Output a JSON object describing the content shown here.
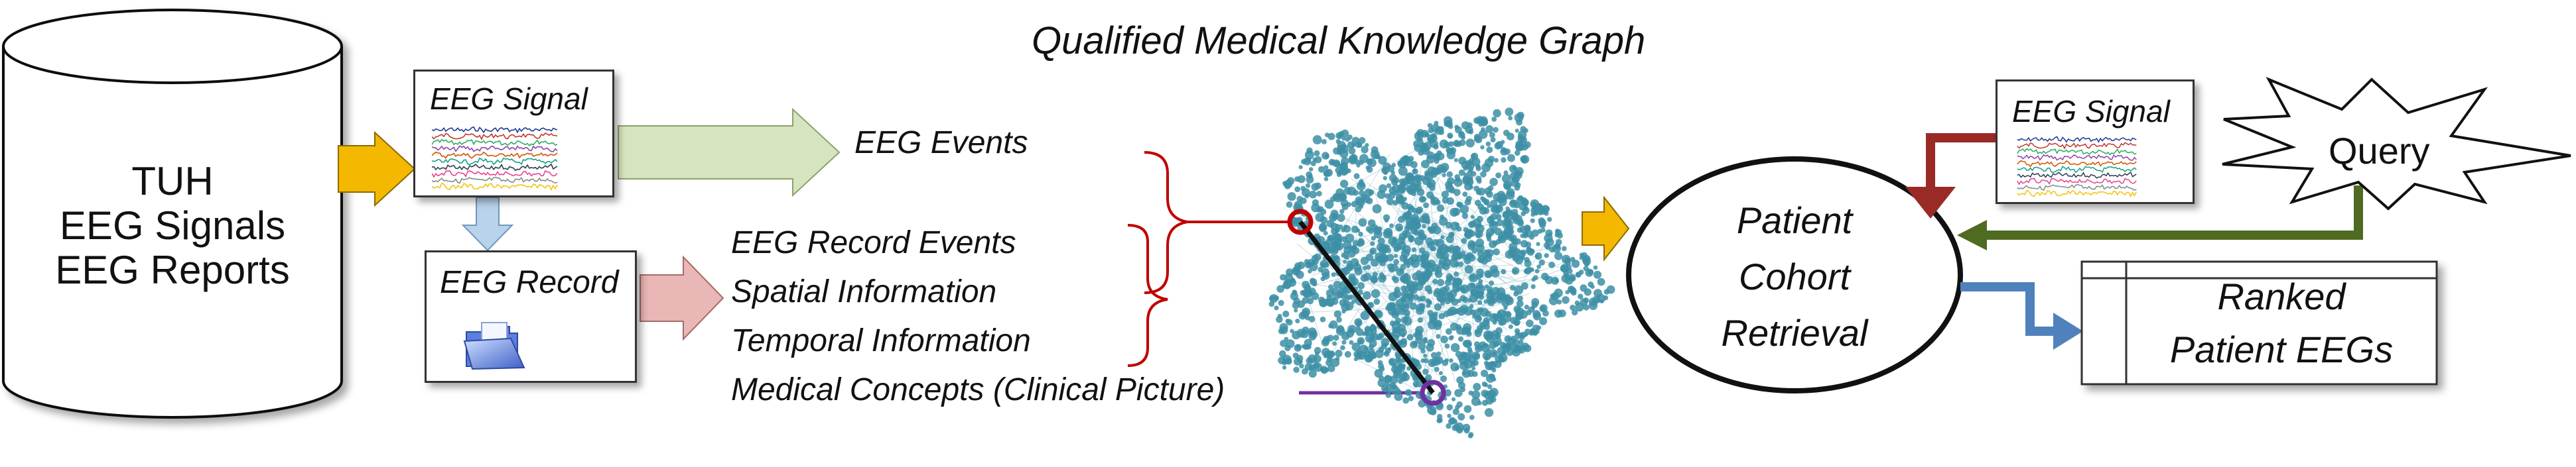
{
  "title": "Qualified Medical Knowledge Graph",
  "database": {
    "lines": [
      "TUH",
      "EEG Signals",
      "EEG Reports"
    ]
  },
  "eeg_signal_box": {
    "label": "EEG  Signal"
  },
  "eeg_record_box": {
    "label": "EEG Record"
  },
  "eeg_events": "EEG  Events",
  "record_items": [
    "EEG  Record Events",
    "Spatial Information",
    "Temporal Information",
    "Medical Concepts (Clinical Picture)"
  ],
  "retrieval": {
    "lines": [
      "Patient",
      "Cohort",
      "Retrieval"
    ]
  },
  "query_signal_box": {
    "label": "EEG  Signal"
  },
  "query": "Query",
  "ranked": {
    "lines": [
      "Ranked",
      "Patient EEGs"
    ]
  },
  "colors": {
    "yellow_arrow": "#f5b800",
    "green_arrow": "#d6e4bf",
    "blue_arrow": "#b9d3ea",
    "pink_arrow": "#e9b7b5",
    "graph_nodes": "#3d8fa6",
    "red_brace": "#c00000",
    "purple_line": "#7030a0",
    "dark_red_arrow": "#9a2a26",
    "olive_arrow": "#4f6b22",
    "steel_blue_arrow": "#4f81bd"
  }
}
